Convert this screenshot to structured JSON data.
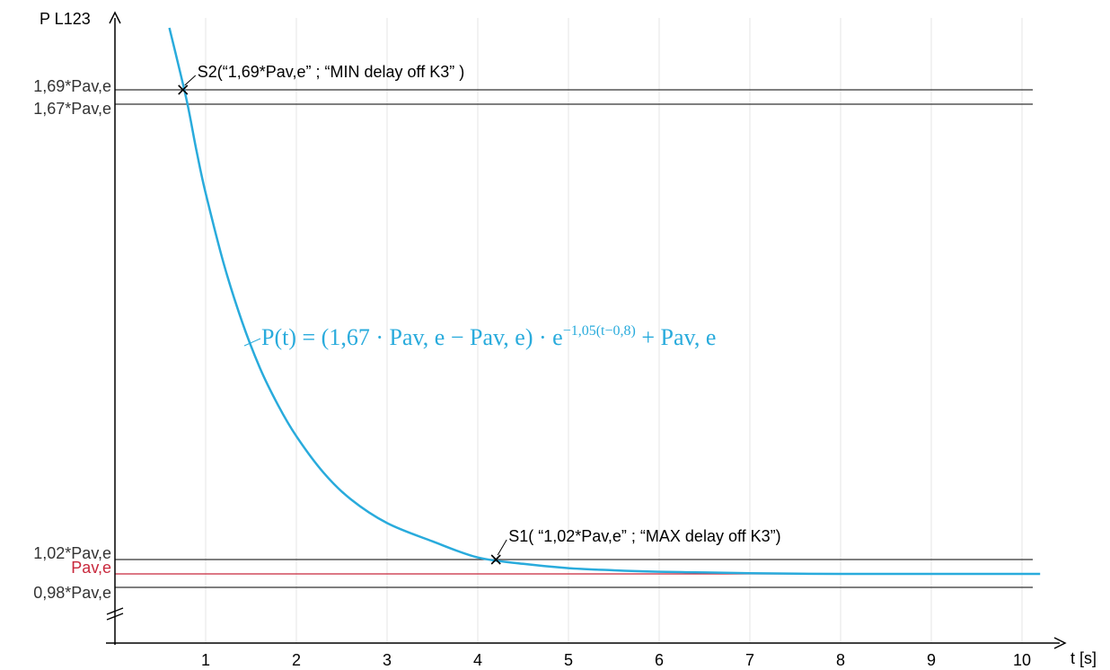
{
  "chart_data": {
    "type": "line",
    "xlabel": "t [s]",
    "ylabel": "P L123",
    "xlim": [
      0,
      10.2
    ],
    "x_ticks": [
      1,
      2,
      3,
      4,
      5,
      6,
      7,
      8,
      9,
      10
    ],
    "x_tick_labels": [
      "1",
      "2",
      "3",
      "4",
      "5",
      "6",
      "7",
      "8",
      "9",
      "10"
    ],
    "y_unit_label": "Pav,e",
    "y_axis_break": true,
    "grid": {
      "vertical": true,
      "horizontal": false
    },
    "reference_lines": [
      {
        "label": "1,69*Pav,e",
        "value": 1.69,
        "color": "#333333"
      },
      {
        "label": "1,67*Pav,e",
        "value": 1.67,
        "color": "#333333"
      },
      {
        "label": "1,02*Pav,e",
        "value": 1.02,
        "color": "#333333"
      },
      {
        "label": "Pav,e",
        "value": 1.0,
        "color": "#c8283c"
      },
      {
        "label": "0,98*Pav,e",
        "value": 0.98,
        "color": "#333333"
      }
    ],
    "series": [
      {
        "color": "#29abdc",
        "x": [
          0.6,
          0.7,
          0.8,
          0.9,
          1.0,
          1.2,
          1.4,
          1.6,
          1.8,
          2.0,
          2.3,
          2.6,
          3.0,
          3.5,
          4.0,
          4.5,
          5.0,
          5.5,
          6.0,
          6.5,
          7.0,
          8.0,
          9.0,
          10.2
        ],
        "y": [
          1.828,
          1.745,
          1.67,
          1.603,
          1.543,
          1.442,
          1.36,
          1.293,
          1.24,
          1.196,
          1.144,
          1.106,
          1.072,
          1.046,
          1.023,
          1.014,
          1.008,
          1.005,
          1.003,
          1.002,
          1.001,
          1.0,
          1.0,
          1.0
        ]
      }
    ],
    "formula_label": "P(t) = (1,67 · Pav, e − Pav, e) · e",
    "formula_exponent": "−1,05(t−0,8)",
    "formula_tail": " + Pav, e",
    "points": [
      {
        "label": "S2(“1,69*Pav,e” ; “MIN delay off K3” )",
        "x": 0.75,
        "y": 1.69
      },
      {
        "label": "S1( “1,02*Pav,e” ; “MAX delay off K3”)",
        "x": 4.2,
        "y": 1.02
      }
    ],
    "point_marker": "x"
  }
}
